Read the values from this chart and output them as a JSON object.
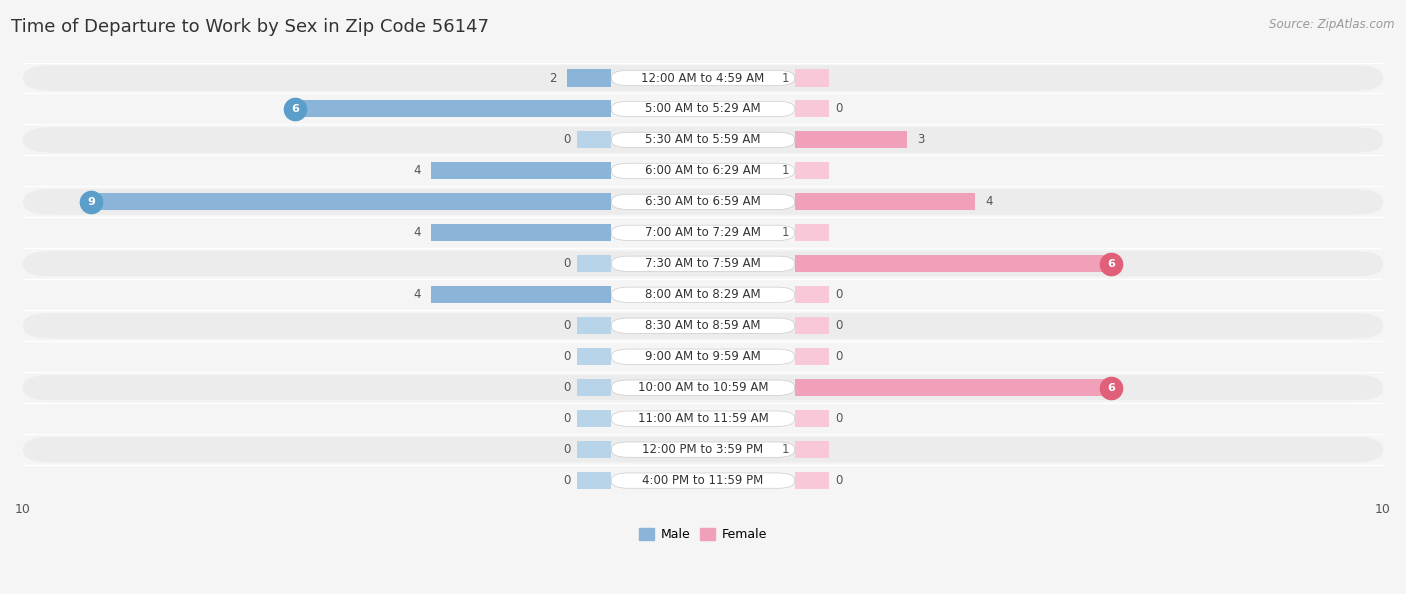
{
  "title": "Time of Departure to Work by Sex in Zip Code 56147",
  "source": "Source: ZipAtlas.com",
  "categories": [
    "12:00 AM to 4:59 AM",
    "5:00 AM to 5:29 AM",
    "5:30 AM to 5:59 AM",
    "6:00 AM to 6:29 AM",
    "6:30 AM to 6:59 AM",
    "7:00 AM to 7:29 AM",
    "7:30 AM to 7:59 AM",
    "8:00 AM to 8:29 AM",
    "8:30 AM to 8:59 AM",
    "9:00 AM to 9:59 AM",
    "10:00 AM to 10:59 AM",
    "11:00 AM to 11:59 AM",
    "12:00 PM to 3:59 PM",
    "4:00 PM to 11:59 PM"
  ],
  "male_values": [
    2,
    6,
    0,
    4,
    9,
    4,
    0,
    4,
    0,
    0,
    0,
    0,
    0,
    0
  ],
  "female_values": [
    1,
    0,
    3,
    1,
    4,
    1,
    6,
    0,
    0,
    0,
    6,
    0,
    1,
    0
  ],
  "male_color": "#8ab4d8",
  "male_color_dark": "#5b9ec9",
  "female_color": "#f0a0b8",
  "female_color_dark": "#e0607a",
  "male_stub_color": "#b8d4e8",
  "female_stub_color": "#f8c8d8",
  "xlim": 10,
  "row_alt_color": "#ececec",
  "row_base_color": "#f5f5f5",
  "bg_color": "#f5f5f5",
  "title_fontsize": 13,
  "axis_fontsize": 9,
  "source_fontsize": 8.5,
  "label_fontsize": 8.5,
  "value_fontsize": 8.5,
  "badge_fontsize": 8
}
